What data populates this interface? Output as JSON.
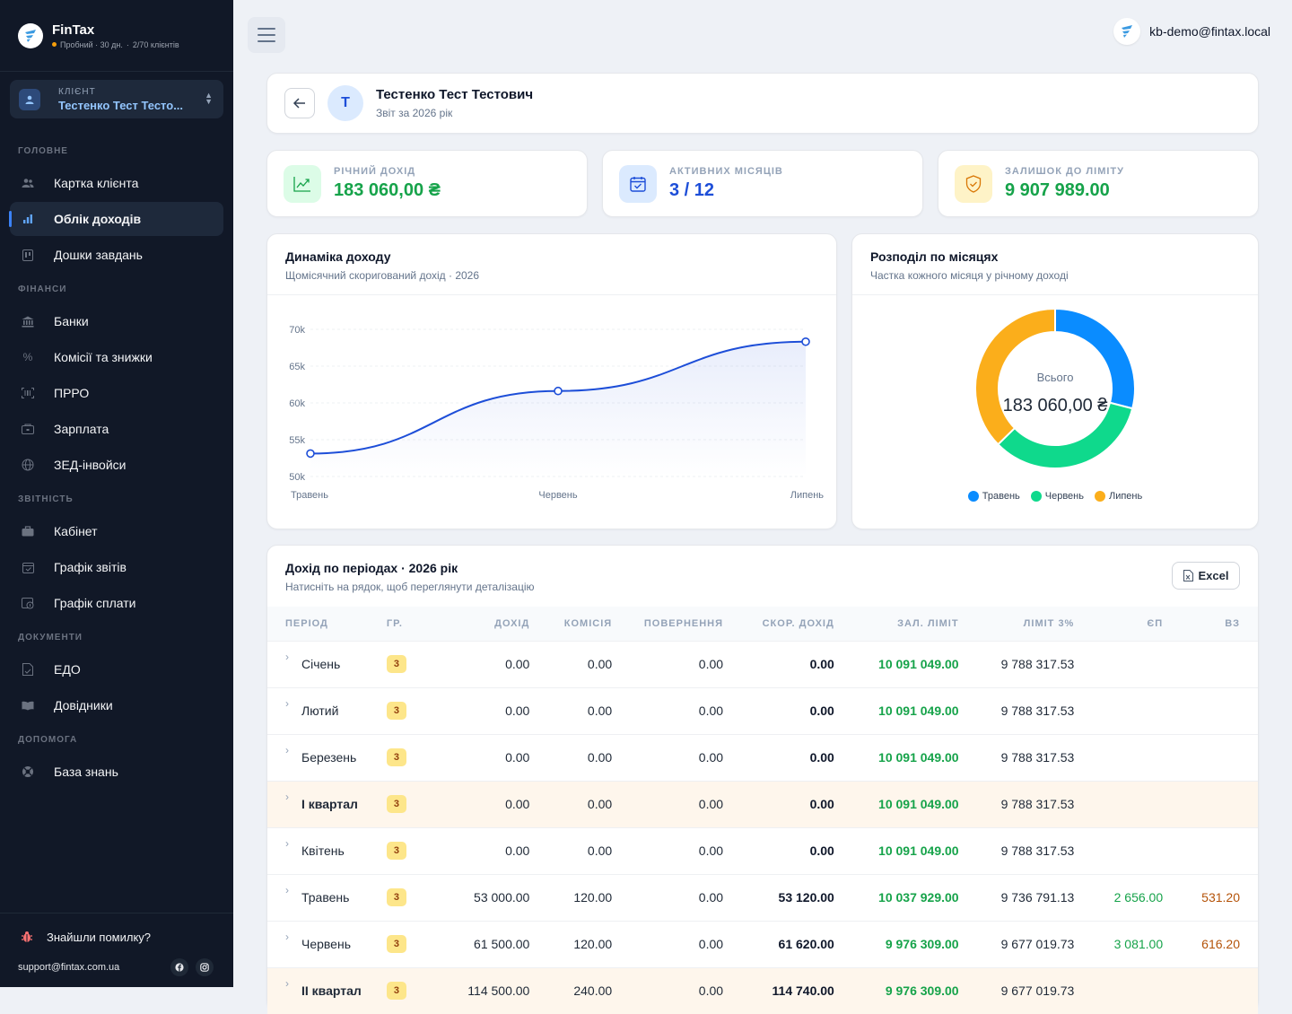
{
  "brand": {
    "name": "FinTax",
    "trial": "Пробний · 30 дн.",
    "clients": "2/70 клієнтів"
  },
  "client_selector": {
    "label": "КЛІЄНТ",
    "name": "Тестенко Тест Тесто..."
  },
  "nav": {
    "sections": {
      "main": "ГОЛОВНЕ",
      "finance": "ФІНАНСИ",
      "reporting": "ЗВІТНІСТЬ",
      "documents": "ДОКУМЕНТИ",
      "help": "ДОПОМОГА"
    },
    "items": {
      "client_card": "Картка клієнта",
      "income": "Облік доходів",
      "tasks": "Дошки завдань",
      "banks": "Банки",
      "fees": "Комісії та знижки",
      "prro": "ПРРО",
      "salary": "Зарплата",
      "zed": "ЗЕД-інвойси",
      "cabinet": "Кабінет",
      "report_schedule": "Графік звітів",
      "payment_schedule": "Графік сплати",
      "edo": "ЕДО",
      "directories": "Довідники",
      "knowledge": "База знань"
    },
    "active": "income"
  },
  "footer": {
    "bug": "Знайшли помилку?",
    "email": "support@fintax.com.ua"
  },
  "user": {
    "email": "kb-demo@fintax.local"
  },
  "header": {
    "avatar_letter": "Т",
    "title": "Тестенко Тест Тестович",
    "subtitle": "Звіт за 2026 рік"
  },
  "stats": [
    {
      "label": "РІЧНИЙ ДОХІД",
      "value": "183 060,00 ₴",
      "color": "#16a34a",
      "icon": "trending-up-icon"
    },
    {
      "label": "АКТИВНИХ МІСЯЦІВ",
      "value": "3 / 12",
      "color": "#1d4ed8",
      "icon": "calendar-check-icon"
    },
    {
      "label": "ЗАЛИШОК ДО ЛІМІТУ",
      "value": "9 907 989.00",
      "color": "#16a34a",
      "icon": "shield-check-icon"
    }
  ],
  "line_chart": {
    "title": "Динаміка доходу",
    "subtitle": "Щомісячний скоригований дохід · 2026"
  },
  "donut_chart": {
    "title": "Розподіл по місяцях",
    "subtitle": "Частка кожного місяця у річному доході",
    "center_label": "Всього",
    "center_value": "183 060,00 ₴"
  },
  "chart_data": [
    {
      "type": "line",
      "categories": [
        "Травень",
        "Червень",
        "Липень"
      ],
      "series": [
        {
          "values": [
            53120,
            61620,
            68320
          ]
        }
      ],
      "ylim": [
        50000,
        70000
      ],
      "yticks": [
        "50k",
        "55k",
        "60k",
        "65k",
        "70k"
      ],
      "ytick_values": [
        50000,
        55000,
        60000,
        65000,
        70000
      ],
      "color": "#1d4ed8",
      "grid": true
    },
    {
      "type": "pie",
      "categories": [
        "Травень",
        "Червень",
        "Липень"
      ],
      "values": [
        53120,
        61620,
        68320
      ],
      "colors": [
        "#0a8cff",
        "#0fd98c",
        "#fbae1b"
      ],
      "legend": "bottom"
    }
  ],
  "table": {
    "title": "Дохід по періодах · 2026 рік",
    "subtitle": "Натисніть на рядок, щоб переглянути деталізацію",
    "excel_label": "Excel",
    "columns": [
      "ПЕРІОД",
      "ГР.",
      "ДОХІД",
      "КОМІСІЯ",
      "ПОВЕРНЕННЯ",
      "СКОР. ДОХІД",
      "ЗАЛ. ЛІМІТ",
      "ЛІМІТ 3%",
      "ЄП",
      "ВЗ"
    ],
    "rows": [
      {
        "period": "Січень",
        "group": "3",
        "income": "0.00",
        "commission": "0.00",
        "refund": "0.00",
        "adjusted": "0.00",
        "limit_left": "10 091 049.00",
        "limit3": "9 788 317.53",
        "ep": "",
        "vz": "",
        "quarter": false
      },
      {
        "period": "Лютий",
        "group": "3",
        "income": "0.00",
        "commission": "0.00",
        "refund": "0.00",
        "adjusted": "0.00",
        "limit_left": "10 091 049.00",
        "limit3": "9 788 317.53",
        "ep": "",
        "vz": "",
        "quarter": false
      },
      {
        "period": "Березень",
        "group": "3",
        "income": "0.00",
        "commission": "0.00",
        "refund": "0.00",
        "adjusted": "0.00",
        "limit_left": "10 091 049.00",
        "limit3": "9 788 317.53",
        "ep": "",
        "vz": "",
        "quarter": false
      },
      {
        "period": "І квартал",
        "group": "3",
        "income": "0.00",
        "commission": "0.00",
        "refund": "0.00",
        "adjusted": "0.00",
        "limit_left": "10 091 049.00",
        "limit3": "9 788 317.53",
        "ep": "",
        "vz": "",
        "quarter": true
      },
      {
        "period": "Квітень",
        "group": "3",
        "income": "0.00",
        "commission": "0.00",
        "refund": "0.00",
        "adjusted": "0.00",
        "limit_left": "10 091 049.00",
        "limit3": "9 788 317.53",
        "ep": "",
        "vz": "",
        "quarter": false
      },
      {
        "period": "Травень",
        "group": "3",
        "income": "53 000.00",
        "commission": "120.00",
        "refund": "0.00",
        "adjusted": "53 120.00",
        "limit_left": "10 037 929.00",
        "limit3": "9 736 791.13",
        "ep": "2 656.00",
        "vz": "531.20",
        "quarter": false
      },
      {
        "period": "Червень",
        "group": "3",
        "income": "61 500.00",
        "commission": "120.00",
        "refund": "0.00",
        "adjusted": "61 620.00",
        "limit_left": "9 976 309.00",
        "limit3": "9 677 019.73",
        "ep": "3 081.00",
        "vz": "616.20",
        "quarter": false
      },
      {
        "period": "ІІ квартал",
        "group": "3",
        "income": "114 500.00",
        "commission": "240.00",
        "refund": "0.00",
        "adjusted": "114 740.00",
        "limit_left": "9 976 309.00",
        "limit3": "9 677 019.73",
        "ep": "",
        "vz": "",
        "quarter": true
      }
    ]
  }
}
